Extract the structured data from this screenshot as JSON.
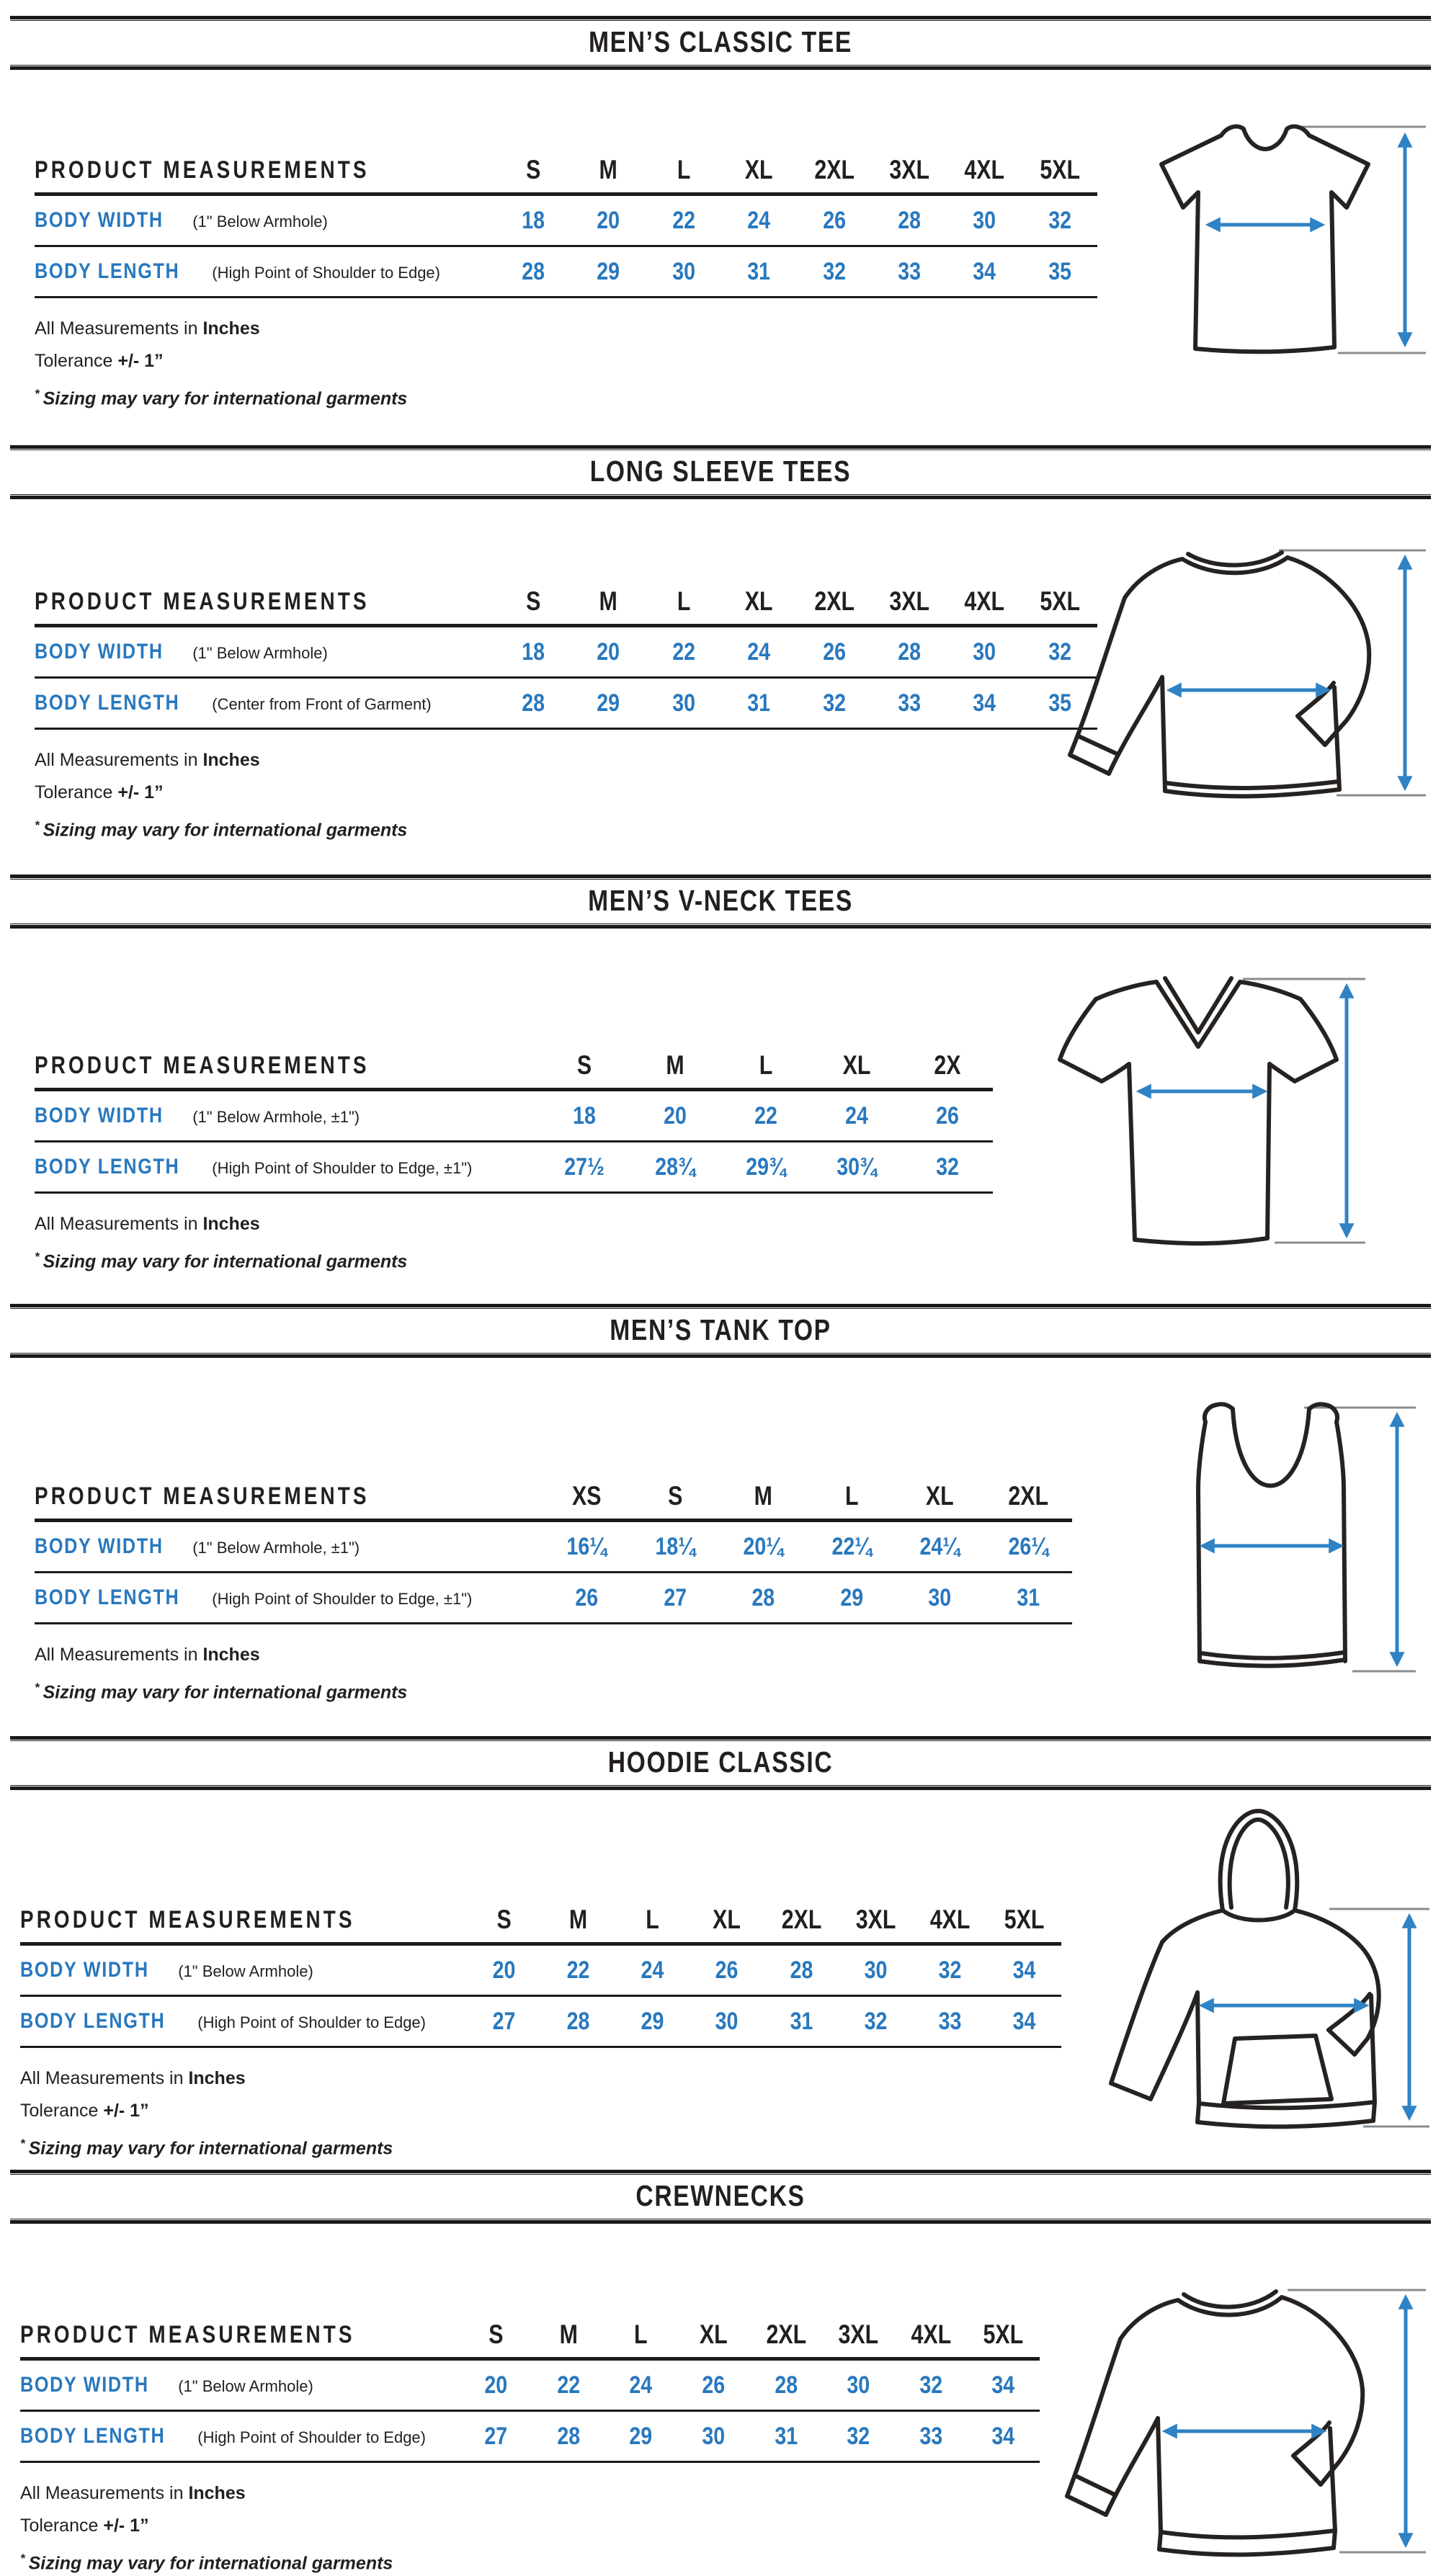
{
  "colors": {
    "background": "#ffffff",
    "ink": "#231f20",
    "accent_blue": "#2878be",
    "arrow_blue": "#2f82c4",
    "extension_line_gray": "#8a8c8f",
    "rule_black": "#1c1a19"
  },
  "sections": [
    {
      "title": "MEN’S CLASSIC TEE",
      "garment_icon": "classic-tee-illustration",
      "table": {
        "header_label": "PRODUCT MEASUREMENTS",
        "sizes": [
          "S",
          "M",
          "L",
          "XL",
          "2XL",
          "3XL",
          "4XL",
          "5XL"
        ],
        "rows": [
          {
            "label": "BODY WIDTH",
            "sublabel": "(1\" Below Armhole)",
            "values": [
              "18",
              "20",
              "22",
              "24",
              "26",
              "28",
              "30",
              "32"
            ]
          },
          {
            "label": "BODY LENGTH",
            "sublabel": "(High Point of Shoulder to Edge)",
            "values": [
              "28",
              "29",
              "30",
              "31",
              "32",
              "33",
              "34",
              "35"
            ]
          }
        ]
      },
      "notes": [
        {
          "text": "All Measurements in ",
          "bold": "Inches"
        },
        {
          "text": "Tolerance ",
          "bold": "+/- 1”"
        },
        {
          "star": "*",
          "text": "Sizing may vary for international garments"
        }
      ]
    },
    {
      "title": "LONG SLEEVE TEES",
      "garment_icon": "long-sleeve-tee-illustration",
      "table": {
        "header_label": "PRODUCT MEASUREMENTS",
        "sizes": [
          "S",
          "M",
          "L",
          "XL",
          "2XL",
          "3XL",
          "4XL",
          "5XL"
        ],
        "rows": [
          {
            "label": "BODY WIDTH",
            "sublabel": "(1\" Below Armhole)",
            "values": [
              "18",
              "20",
              "22",
              "24",
              "26",
              "28",
              "30",
              "32"
            ]
          },
          {
            "label": "BODY LENGTH",
            "sublabel": "(Center from Front of Garment)",
            "values": [
              "28",
              "29",
              "30",
              "31",
              "32",
              "33",
              "34",
              "35"
            ]
          }
        ]
      },
      "notes": [
        {
          "text": "All Measurements in ",
          "bold": "Inches"
        },
        {
          "text": "Tolerance ",
          "bold": "+/- 1”"
        },
        {
          "star": "*",
          "text": "Sizing may vary for international garments"
        }
      ]
    },
    {
      "title": "MEN’S V-NECK TEES",
      "garment_icon": "v-neck-tee-illustration",
      "table": {
        "header_label": "PRODUCT MEASUREMENTS",
        "sizes": [
          "S",
          "M",
          "L",
          "XL",
          "2X"
        ],
        "rows": [
          {
            "label": "BODY WIDTH",
            "sublabel": "(1\" Below Armhole, ±1\")",
            "values": [
              "18",
              "20",
              "22",
              "24",
              "26"
            ]
          },
          {
            "label": "BODY LENGTH",
            "sublabel": "(High Point of Shoulder to Edge, ±1\")",
            "values": [
              "27½",
              "28¾",
              "29¾",
              "30¾",
              "32"
            ]
          }
        ]
      },
      "notes": [
        {
          "text": "All Measurements in ",
          "bold": "Inches"
        },
        {
          "star": "*",
          "text": "Sizing may vary for international garments"
        }
      ]
    },
    {
      "title": "MEN’S TANK TOP",
      "garment_icon": "tank-top-illustration",
      "table": {
        "header_label": "PRODUCT MEASUREMENTS",
        "sizes": [
          "XS",
          "S",
          "M",
          "L",
          "XL",
          "2XL"
        ],
        "rows": [
          {
            "label": "BODY WIDTH",
            "sublabel": "(1\" Below Armhole, ±1\")",
            "values": [
              "16¼",
              "18¼",
              "20¼",
              "22¼",
              "24¼",
              "26¼"
            ]
          },
          {
            "label": "BODY LENGTH",
            "sublabel": "(High Point of Shoulder to Edge, ±1\")",
            "values": [
              "26",
              "27",
              "28",
              "29",
              "30",
              "31"
            ]
          }
        ]
      },
      "notes": [
        {
          "text": "All Measurements in ",
          "bold": "Inches"
        },
        {
          "star": "*",
          "text": "Sizing may vary for international garments"
        }
      ]
    },
    {
      "title": "HOODIE CLASSIC",
      "garment_icon": "hoodie-illustration",
      "table": {
        "header_label": "PRODUCT MEASUREMENTS",
        "sizes": [
          "S",
          "M",
          "L",
          "XL",
          "2XL",
          "3XL",
          "4XL",
          "5XL"
        ],
        "rows": [
          {
            "label": "BODY WIDTH",
            "sublabel": "(1\" Below Armhole)",
            "values": [
              "20",
              "22",
              "24",
              "26",
              "28",
              "30",
              "32",
              "34"
            ]
          },
          {
            "label": "BODY LENGTH",
            "sublabel": "(High Point of Shoulder to Edge)",
            "values": [
              "27",
              "28",
              "29",
              "30",
              "31",
              "32",
              "33",
              "34"
            ]
          }
        ]
      },
      "notes": [
        {
          "text": "All Measurements in ",
          "bold": "Inches"
        },
        {
          "text": "Tolerance ",
          "bold": "+/- 1”"
        },
        {
          "star": "*",
          "text": "Sizing may vary for international garments"
        }
      ]
    },
    {
      "title": "CREWNECKS",
      "garment_icon": "crewneck-illustration",
      "table": {
        "header_label": "PRODUCT MEASUREMENTS",
        "sizes": [
          "S",
          "M",
          "L",
          "XL",
          "2XL",
          "3XL",
          "4XL",
          "5XL"
        ],
        "rows": [
          {
            "label": "BODY WIDTH",
            "sublabel": "(1\" Below Armhole)",
            "values": [
              "20",
              "22",
              "24",
              "26",
              "28",
              "30",
              "32",
              "34"
            ]
          },
          {
            "label": "BODY LENGTH",
            "sublabel": "(High Point of Shoulder to Edge)",
            "values": [
              "27",
              "28",
              "29",
              "30",
              "31",
              "32",
              "33",
              "34"
            ]
          }
        ]
      },
      "notes": [
        {
          "text": "All Measurements in ",
          "bold": "Inches"
        },
        {
          "text": "Tolerance ",
          "bold": "+/- 1”"
        },
        {
          "star": "*",
          "text": "Sizing may vary for international garments"
        }
      ]
    }
  ]
}
